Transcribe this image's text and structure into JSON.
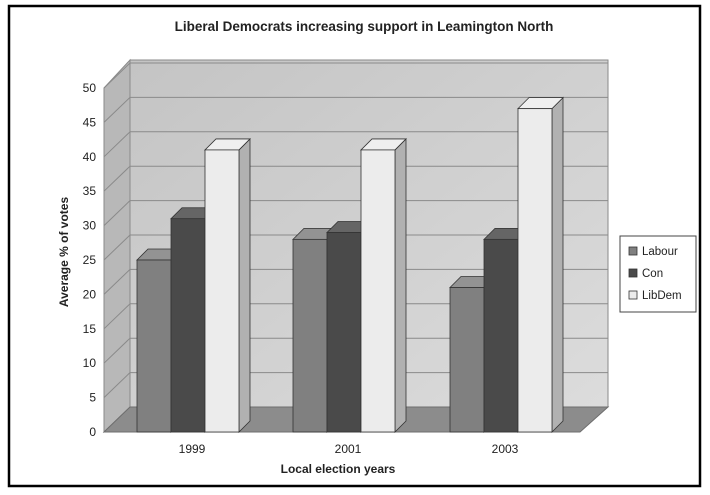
{
  "chart_data": {
    "type": "bar",
    "title": "Liberal Democrats increasing support in Leamington North",
    "xlabel": "Local election years",
    "ylabel": "Average % of votes",
    "categories": [
      "1999",
      "2001",
      "2003"
    ],
    "series": [
      {
        "name": "Labour",
        "values": [
          25,
          28,
          21
        ],
        "color": "#808080"
      },
      {
        "name": "Con",
        "values": [
          31,
          29,
          28
        ],
        "color": "#4a4a4a"
      },
      {
        "name": "LibDem",
        "values": [
          41,
          41,
          47
        ],
        "color": "#ececec"
      }
    ],
    "ylim": [
      0,
      50
    ],
    "yticks": [
      0,
      5,
      10,
      15,
      20,
      25,
      30,
      35,
      40,
      45,
      50
    ],
    "grid": true,
    "legend": "right",
    "style": "3d-bar"
  }
}
